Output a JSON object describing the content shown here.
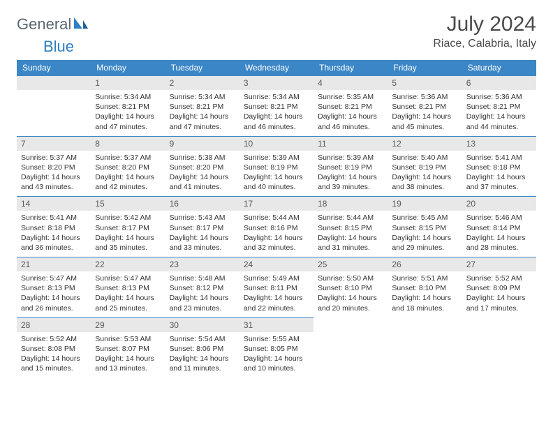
{
  "logo": {
    "text1": "General",
    "text2": "Blue",
    "color_gray": "#5a6770",
    "color_blue": "#2f7fc2"
  },
  "title": "July 2024",
  "location": "Riace, Calabria, Italy",
  "colors": {
    "header_bg": "#3b86c6",
    "daynum_bg": "#e8e8e8",
    "border": "#3b86c6"
  },
  "days_of_week": [
    "Sunday",
    "Monday",
    "Tuesday",
    "Wednesday",
    "Thursday",
    "Friday",
    "Saturday"
  ],
  "weeks": [
    [
      null,
      {
        "n": "1",
        "sr": "5:34 AM",
        "ss": "8:21 PM",
        "dl": "14 hours and 47 minutes."
      },
      {
        "n": "2",
        "sr": "5:34 AM",
        "ss": "8:21 PM",
        "dl": "14 hours and 47 minutes."
      },
      {
        "n": "3",
        "sr": "5:34 AM",
        "ss": "8:21 PM",
        "dl": "14 hours and 46 minutes."
      },
      {
        "n": "4",
        "sr": "5:35 AM",
        "ss": "8:21 PM",
        "dl": "14 hours and 46 minutes."
      },
      {
        "n": "5",
        "sr": "5:36 AM",
        "ss": "8:21 PM",
        "dl": "14 hours and 45 minutes."
      },
      {
        "n": "6",
        "sr": "5:36 AM",
        "ss": "8:21 PM",
        "dl": "14 hours and 44 minutes."
      }
    ],
    [
      {
        "n": "7",
        "sr": "5:37 AM",
        "ss": "8:20 PM",
        "dl": "14 hours and 43 minutes."
      },
      {
        "n": "8",
        "sr": "5:37 AM",
        "ss": "8:20 PM",
        "dl": "14 hours and 42 minutes."
      },
      {
        "n": "9",
        "sr": "5:38 AM",
        "ss": "8:20 PM",
        "dl": "14 hours and 41 minutes."
      },
      {
        "n": "10",
        "sr": "5:39 AM",
        "ss": "8:19 PM",
        "dl": "14 hours and 40 minutes."
      },
      {
        "n": "11",
        "sr": "5:39 AM",
        "ss": "8:19 PM",
        "dl": "14 hours and 39 minutes."
      },
      {
        "n": "12",
        "sr": "5:40 AM",
        "ss": "8:19 PM",
        "dl": "14 hours and 38 minutes."
      },
      {
        "n": "13",
        "sr": "5:41 AM",
        "ss": "8:18 PM",
        "dl": "14 hours and 37 minutes."
      }
    ],
    [
      {
        "n": "14",
        "sr": "5:41 AM",
        "ss": "8:18 PM",
        "dl": "14 hours and 36 minutes."
      },
      {
        "n": "15",
        "sr": "5:42 AM",
        "ss": "8:17 PM",
        "dl": "14 hours and 35 minutes."
      },
      {
        "n": "16",
        "sr": "5:43 AM",
        "ss": "8:17 PM",
        "dl": "14 hours and 33 minutes."
      },
      {
        "n": "17",
        "sr": "5:44 AM",
        "ss": "8:16 PM",
        "dl": "14 hours and 32 minutes."
      },
      {
        "n": "18",
        "sr": "5:44 AM",
        "ss": "8:15 PM",
        "dl": "14 hours and 31 minutes."
      },
      {
        "n": "19",
        "sr": "5:45 AM",
        "ss": "8:15 PM",
        "dl": "14 hours and 29 minutes."
      },
      {
        "n": "20",
        "sr": "5:46 AM",
        "ss": "8:14 PM",
        "dl": "14 hours and 28 minutes."
      }
    ],
    [
      {
        "n": "21",
        "sr": "5:47 AM",
        "ss": "8:13 PM",
        "dl": "14 hours and 26 minutes."
      },
      {
        "n": "22",
        "sr": "5:47 AM",
        "ss": "8:13 PM",
        "dl": "14 hours and 25 minutes."
      },
      {
        "n": "23",
        "sr": "5:48 AM",
        "ss": "8:12 PM",
        "dl": "14 hours and 23 minutes."
      },
      {
        "n": "24",
        "sr": "5:49 AM",
        "ss": "8:11 PM",
        "dl": "14 hours and 22 minutes."
      },
      {
        "n": "25",
        "sr": "5:50 AM",
        "ss": "8:10 PM",
        "dl": "14 hours and 20 minutes."
      },
      {
        "n": "26",
        "sr": "5:51 AM",
        "ss": "8:10 PM",
        "dl": "14 hours and 18 minutes."
      },
      {
        "n": "27",
        "sr": "5:52 AM",
        "ss": "8:09 PM",
        "dl": "14 hours and 17 minutes."
      }
    ],
    [
      {
        "n": "28",
        "sr": "5:52 AM",
        "ss": "8:08 PM",
        "dl": "14 hours and 15 minutes."
      },
      {
        "n": "29",
        "sr": "5:53 AM",
        "ss": "8:07 PM",
        "dl": "14 hours and 13 minutes."
      },
      {
        "n": "30",
        "sr": "5:54 AM",
        "ss": "8:06 PM",
        "dl": "14 hours and 11 minutes."
      },
      {
        "n": "31",
        "sr": "5:55 AM",
        "ss": "8:05 PM",
        "dl": "14 hours and 10 minutes."
      },
      null,
      null,
      null
    ]
  ],
  "labels": {
    "sunrise": "Sunrise:",
    "sunset": "Sunset:",
    "daylight": "Daylight:"
  }
}
